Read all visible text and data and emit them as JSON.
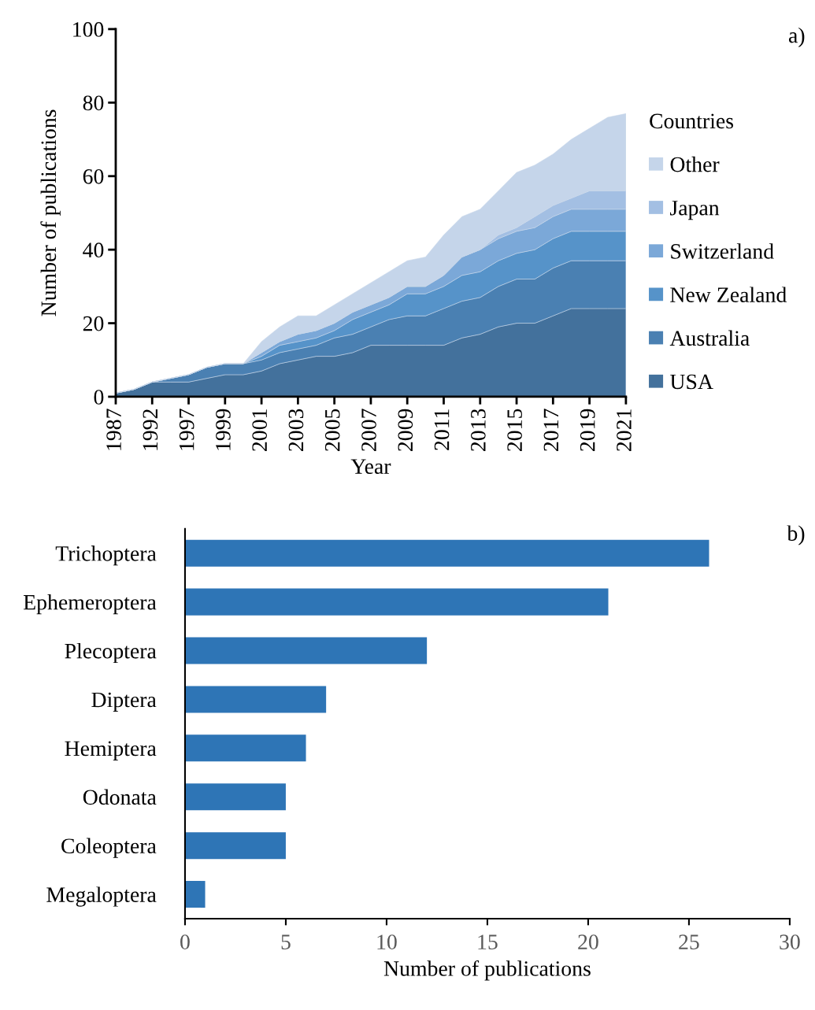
{
  "chart_data": [
    {
      "type": "area",
      "stacked": true,
      "xlabel": "Year",
      "ylabel": "Number of publications",
      "legend_title": "Countries",
      "legend": "right",
      "annotations": [
        "a)"
      ],
      "categories": [
        "1987",
        null,
        "1992",
        null,
        "1997",
        null,
        "1999",
        null,
        "2001",
        null,
        "2003",
        null,
        "2005",
        null,
        "2007",
        null,
        "2009",
        null,
        "2011",
        null,
        "2013",
        null,
        "2015",
        null,
        "2017",
        null,
        "2019",
        null,
        "2021"
      ],
      "ylim": [
        0,
        100
      ],
      "yticks": [
        0,
        20,
        40,
        60,
        80,
        100
      ],
      "series": [
        {
          "name": "USA",
          "color": "#43719c",
          "values": [
            1,
            2,
            4,
            4,
            4,
            5,
            6,
            6,
            7,
            9,
            10,
            11,
            11,
            12,
            14,
            14,
            14,
            14,
            14,
            16,
            17,
            19,
            20,
            20,
            22,
            24,
            24,
            24,
            24
          ]
        },
        {
          "name": "Australia",
          "color": "#4a80b2",
          "values": [
            0,
            0,
            0,
            1,
            2,
            3,
            3,
            3,
            3,
            3,
            3,
            3,
            5,
            5,
            5,
            7,
            8,
            8,
            10,
            10,
            10,
            11,
            12,
            12,
            13,
            13,
            13,
            13,
            13
          ]
        },
        {
          "name": "New Zealand",
          "color": "#5693c9",
          "values": [
            0,
            0,
            0,
            0,
            0,
            0,
            0,
            0,
            1,
            2,
            2,
            2,
            2,
            4,
            4,
            4,
            6,
            6,
            6,
            7,
            7,
            7,
            7,
            8,
            8,
            8,
            8,
            8,
            8
          ]
        },
        {
          "name": "Switzerland",
          "color": "#7ba8d8",
          "values": [
            0,
            0,
            0,
            0,
            0,
            0,
            0,
            0,
            1,
            1,
            2,
            2,
            2,
            2,
            2,
            2,
            2,
            2,
            3,
            5,
            6,
            6,
            6,
            6,
            6,
            6,
            6,
            6,
            6
          ]
        },
        {
          "name": "Japan",
          "color": "#a3bfe3",
          "values": [
            0,
            0,
            0,
            0,
            0,
            0,
            0,
            0,
            0,
            0,
            0,
            0,
            0,
            0,
            0,
            0,
            0,
            0,
            0,
            0,
            0,
            1,
            1,
            3,
            3,
            3,
            5,
            5,
            5
          ]
        },
        {
          "name": "Other",
          "color": "#c5d5ea",
          "values": [
            0,
            0,
            0,
            0,
            0,
            0,
            0,
            0,
            3,
            4,
            5,
            4,
            5,
            5,
            6,
            7,
            7,
            8,
            11,
            11,
            11,
            12,
            15,
            14,
            14,
            16,
            17,
            20,
            21
          ]
        }
      ]
    },
    {
      "type": "bar",
      "orientation": "horizontal",
      "xlabel": "Number of publications",
      "annotations": [
        "b)"
      ],
      "categories": [
        "Trichoptera",
        "Ephemeroptera",
        "Plecoptera",
        "Diptera",
        "Hemiptera",
        "Odonata",
        "Coleoptera",
        "Megaloptera"
      ],
      "values": [
        26,
        21,
        12,
        7,
        6,
        5,
        5,
        1
      ],
      "color": "#2e75b6",
      "xlim": [
        0,
        30
      ],
      "xticks": [
        0,
        5,
        10,
        15,
        20,
        25,
        30
      ]
    }
  ]
}
